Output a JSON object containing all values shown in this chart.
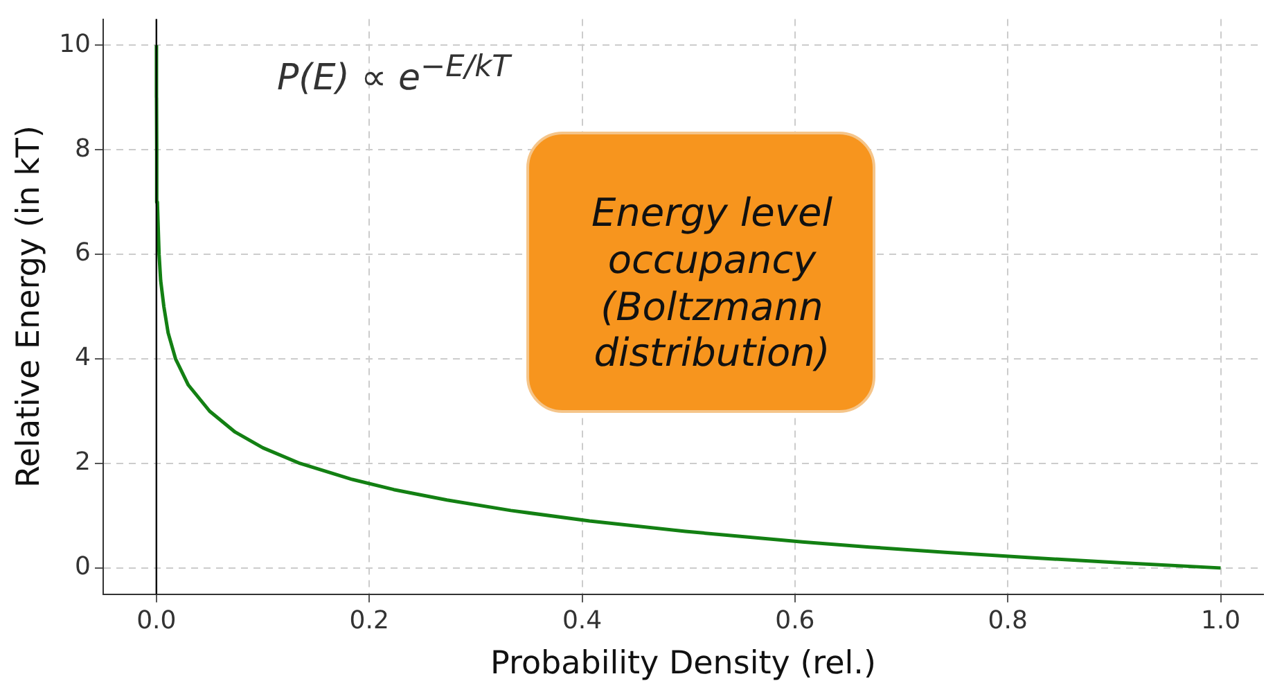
{
  "chart_data": {
    "type": "line",
    "xlabel": "Probability Density (rel.)",
    "ylabel": "Relative Energy (in kT)",
    "x": [
      1,
      0.905,
      0.819,
      0.741,
      0.67,
      0.607,
      0.497,
      0.407,
      0.333,
      0.273,
      0.223,
      0.183,
      0.135,
      0.1,
      0.074,
      0.05,
      0.03,
      0.018,
      0.011,
      0.007,
      0.004,
      0.0025,
      0.0009,
      0.0003,
      0.0001,
      5e-05
    ],
    "series": [
      {
        "color": "#138013",
        "values": [
          0,
          0.1,
          0.2,
          0.3,
          0.4,
          0.5,
          0.7,
          0.9,
          1.1,
          1.3,
          1.5,
          1.7,
          2,
          2.3,
          2.6,
          3,
          3.5,
          4,
          4.5,
          5,
          5.5,
          6,
          7,
          8,
          9,
          10
        ]
      }
    ],
    "xlim": [
      -0.05,
      1.04
    ],
    "ylim": [
      -0.5,
      10.5
    ],
    "xticks": [
      {
        "value": 0,
        "label": "0.0"
      },
      {
        "value": 0.2,
        "label": "0.2"
      },
      {
        "value": 0.4,
        "label": "0.4"
      },
      {
        "value": 0.6,
        "label": "0.6"
      },
      {
        "value": 0.8,
        "label": "0.8"
      },
      {
        "value": 1,
        "label": "1.0"
      }
    ],
    "yticks": [
      0,
      2,
      4,
      6,
      8,
      10
    ],
    "ref_lines": [
      {
        "axis": "x",
        "value": 0,
        "color": "#000000"
      }
    ],
    "annotations": [
      "P(E) ∝ e$^{−E/kT}$",
      "Energy level occupancy (Boltzmann distribution)"
    ],
    "grid": true,
    "marker": "none",
    "line_style": "solid",
    "legend": false
  }
}
